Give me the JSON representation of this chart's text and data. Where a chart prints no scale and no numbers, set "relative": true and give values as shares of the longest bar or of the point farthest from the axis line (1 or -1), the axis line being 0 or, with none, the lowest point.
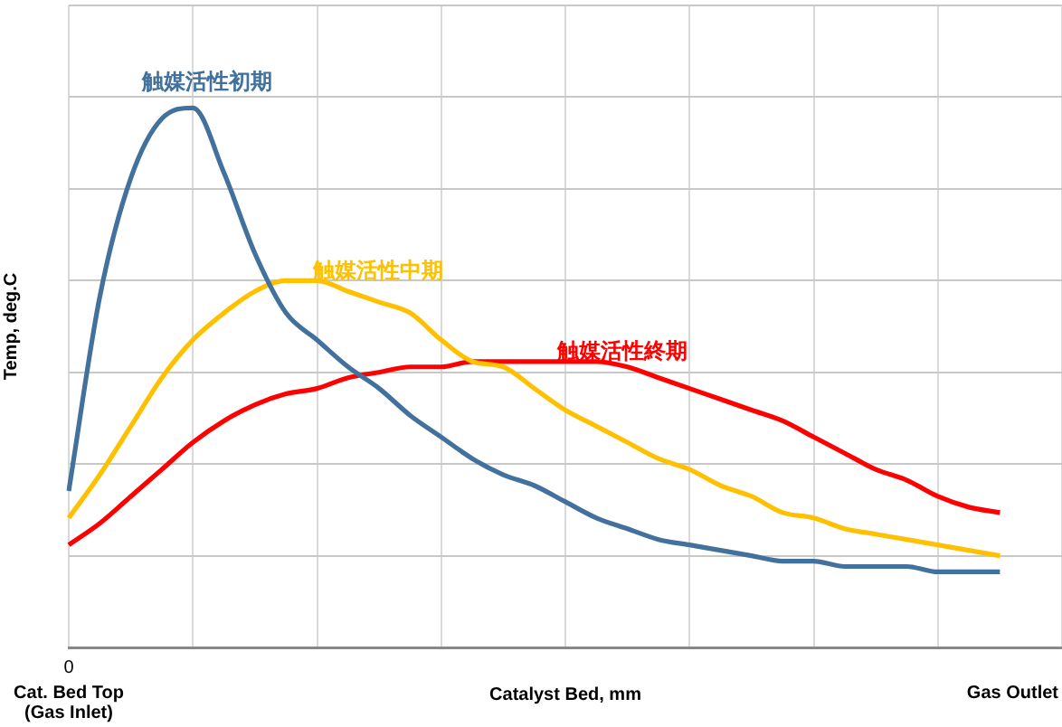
{
  "chart_data": {
    "type": "line",
    "relative": true,
    "xlabel": "Catalyst Bed, mm",
    "ylabel": "Temp, deg.C",
    "categories": [
      null,
      null,
      null,
      null,
      null,
      null,
      null,
      null,
      null,
      null,
      null,
      null,
      null,
      null,
      null,
      null,
      null,
      null,
      null,
      null,
      null,
      null,
      null,
      null,
      null,
      null,
      null,
      null,
      null,
      null,
      null,
      null,
      null
    ],
    "series": [
      {
        "name": "触媒活性初期",
        "color": "#41719c",
        "values": [
          0.29,
          0.65,
          0.87,
          0.98,
          1,
          0.88,
          0.73,
          0.62,
          0.57,
          0.52,
          0.48,
          0.43,
          0.39,
          0.35,
          0.32,
          0.3,
          0.27,
          0.24,
          0.22,
          0.2,
          0.19,
          0.18,
          0.17,
          0.16,
          0.16,
          0.15,
          0.15,
          0.15,
          0.14,
          0.14,
          0.14,
          null,
          null
        ]
      },
      {
        "name": "触媒活性中期",
        "color": "#ffc000",
        "values": [
          0.24,
          0.32,
          0.41,
          0.5,
          0.57,
          0.62,
          0.66,
          0.68,
          0.68,
          0.66,
          0.64,
          0.62,
          0.57,
          0.53,
          0.52,
          0.48,
          0.44,
          0.41,
          0.38,
          0.35,
          0.33,
          0.3,
          0.28,
          0.25,
          0.24,
          0.22,
          0.21,
          0.2,
          0.19,
          0.18,
          0.17,
          null,
          null
        ]
      },
      {
        "name": "触媒活性終期",
        "color": "#ff0000",
        "values": [
          0.19,
          0.23,
          0.28,
          0.33,
          0.38,
          0.42,
          0.45,
          0.47,
          0.48,
          0.5,
          0.51,
          0.52,
          0.52,
          0.53,
          0.53,
          0.53,
          0.53,
          0.53,
          0.52,
          0.5,
          0.48,
          0.46,
          0.44,
          0.42,
          0.39,
          0.36,
          0.33,
          0.31,
          0.28,
          0.26,
          0.25,
          null,
          null
        ]
      }
    ],
    "annotations": [
      "0",
      "Cat. Bed Top\n(Gas Inlet)",
      "Gas Outlet"
    ],
    "grid": true,
    "marker": "none",
    "line_style": "solid"
  }
}
